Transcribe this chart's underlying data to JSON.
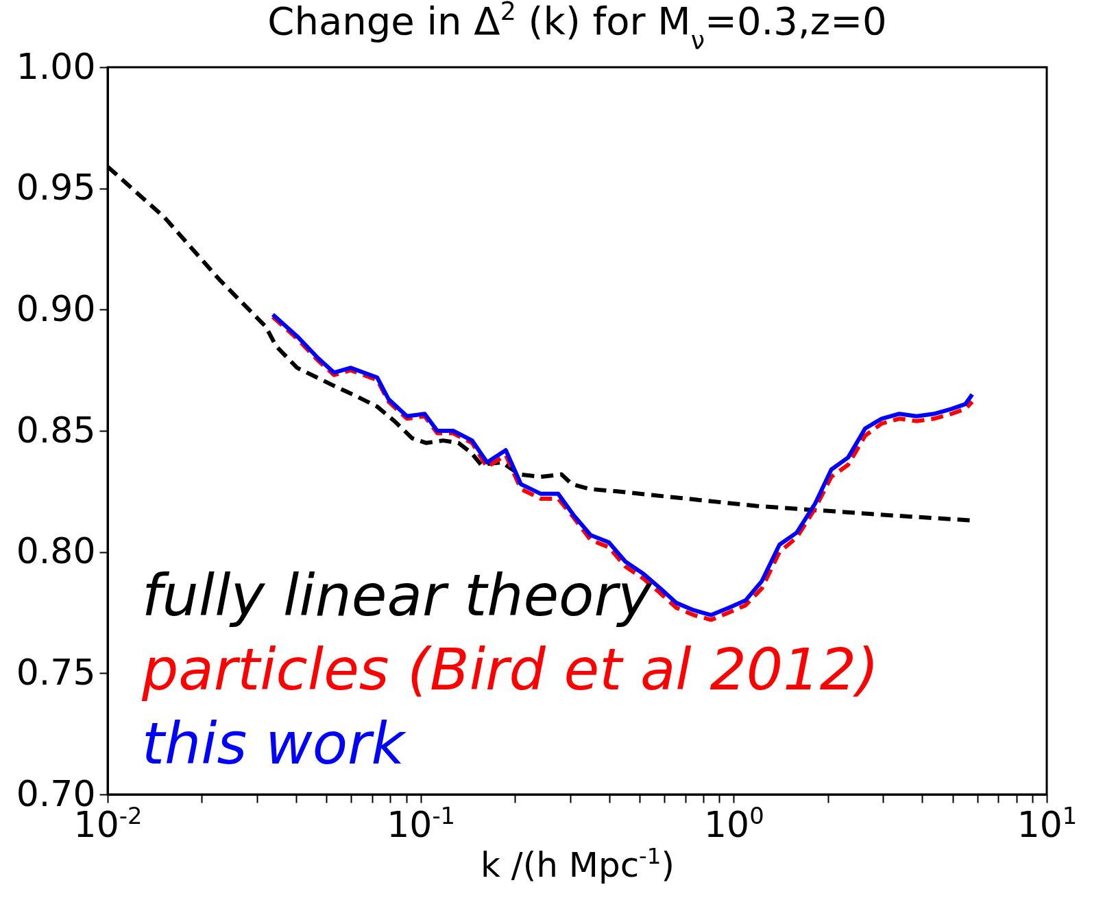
{
  "chart_data": {
    "type": "line",
    "title": "Change in Δ$^{2}$ (k) for M$_{ν}$=0.3,z=0",
    "xlabel": "k /(h Mpc$^{-1}$)",
    "log": "x",
    "xlim": [
      0.01,
      10
    ],
    "ylim": [
      0.7,
      1.0
    ],
    "grid": false,
    "legend": "bottom left",
    "xticks": [
      {
        "value": 0.01,
        "label": "10$^{-2}$"
      },
      {
        "value": 0.02,
        "label": null
      },
      {
        "value": 0.03,
        "label": null
      },
      {
        "value": 0.04,
        "label": null
      },
      {
        "value": 0.05,
        "label": null
      },
      {
        "value": 0.06,
        "label": null
      },
      {
        "value": 0.07,
        "label": null
      },
      {
        "value": 0.08,
        "label": null
      },
      {
        "value": 0.09,
        "label": null
      },
      {
        "value": 0.1,
        "label": "10$^{-1}$"
      },
      {
        "value": 0.2,
        "label": null
      },
      {
        "value": 0.3,
        "label": null
      },
      {
        "value": 0.4,
        "label": null
      },
      {
        "value": 0.5,
        "label": null
      },
      {
        "value": 0.6,
        "label": null
      },
      {
        "value": 0.7,
        "label": null
      },
      {
        "value": 0.8,
        "label": null
      },
      {
        "value": 0.9,
        "label": null
      },
      {
        "value": 1,
        "label": "10$^{0}$"
      },
      {
        "value": 2,
        "label": null
      },
      {
        "value": 3,
        "label": null
      },
      {
        "value": 4,
        "label": null
      },
      {
        "value": 5,
        "label": null
      },
      {
        "value": 6,
        "label": null
      },
      {
        "value": 7,
        "label": null
      },
      {
        "value": 8,
        "label": null
      },
      {
        "value": 9,
        "label": null
      },
      {
        "value": 10,
        "label": "10$^{1}$"
      }
    ],
    "yticks": [
      {
        "value": 0.7,
        "label": "0.70"
      },
      {
        "value": 0.75,
        "label": "0.75"
      },
      {
        "value": 0.8,
        "label": "0.80"
      },
      {
        "value": 0.85,
        "label": "0.85"
      },
      {
        "value": 0.9,
        "label": "0.90"
      },
      {
        "value": 0.95,
        "label": "0.95"
      },
      {
        "value": 1.0,
        "label": "1.00"
      }
    ],
    "series": [
      {
        "name": "fully linear theory",
        "color": "#000000",
        "line_style": "dashed",
        "x": [
          0.01,
          0.0152,
          0.0229,
          0.032,
          0.0345,
          0.0403,
          0.052,
          0.0607,
          0.0726,
          0.0825,
          0.0938,
          0.104,
          0.118,
          0.132,
          0.145,
          0.156,
          0.182,
          0.207,
          0.242,
          0.282,
          0.304,
          0.346,
          0.425,
          0.708,
          1.18,
          1.97,
          3.29,
          5.78
        ],
        "values": [
          0.959,
          0.938,
          0.912,
          0.893,
          0.885,
          0.876,
          0.869,
          0.865,
          0.86,
          0.854,
          0.847,
          0.845,
          0.846,
          0.845,
          0.841,
          0.836,
          0.837,
          0.832,
          0.831,
          0.832,
          0.828,
          0.826,
          0.825,
          0.822,
          0.819,
          0.817,
          0.815,
          0.813
        ]
      },
      {
        "name": "particles (Bird et al 2012)",
        "color": "#ff0000",
        "line_style": "dashed",
        "x": [
          0.0337,
          0.0403,
          0.047,
          0.0529,
          0.0597,
          0.0726,
          0.079,
          0.0904,
          0.103,
          0.113,
          0.127,
          0.146,
          0.163,
          0.187,
          0.209,
          0.242,
          0.275,
          0.309,
          0.349,
          0.399,
          0.451,
          0.515,
          0.583,
          0.656,
          0.745,
          0.847,
          0.964,
          1.09,
          1.23,
          1.4,
          1.59,
          1.82,
          2.05,
          2.32,
          2.63,
          2.97,
          3.38,
          3.84,
          4.36,
          4.96,
          5.49,
          5.78
        ],
        "values": [
          0.897,
          0.888,
          0.879,
          0.873,
          0.875,
          0.871,
          0.862,
          0.855,
          0.856,
          0.849,
          0.849,
          0.845,
          0.835,
          0.84,
          0.826,
          0.822,
          0.822,
          0.814,
          0.805,
          0.802,
          0.794,
          0.789,
          0.783,
          0.777,
          0.774,
          0.772,
          0.775,
          0.778,
          0.785,
          0.8,
          0.806,
          0.818,
          0.831,
          0.836,
          0.848,
          0.853,
          0.855,
          0.854,
          0.855,
          0.857,
          0.859,
          0.862
        ]
      },
      {
        "name": "this work",
        "color": "#0000ff",
        "line_style": "solid",
        "x": [
          0.0337,
          0.0403,
          0.047,
          0.0529,
          0.0597,
          0.0726,
          0.079,
          0.0904,
          0.103,
          0.113,
          0.127,
          0.146,
          0.163,
          0.187,
          0.209,
          0.242,
          0.275,
          0.309,
          0.349,
          0.399,
          0.451,
          0.515,
          0.583,
          0.656,
          0.745,
          0.847,
          0.964,
          1.09,
          1.23,
          1.4,
          1.59,
          1.82,
          2.05,
          2.32,
          2.63,
          2.97,
          3.38,
          3.84,
          4.36,
          4.96,
          5.49,
          5.78
        ],
        "values": [
          0.898,
          0.889,
          0.88,
          0.874,
          0.876,
          0.872,
          0.863,
          0.856,
          0.857,
          0.85,
          0.85,
          0.846,
          0.837,
          0.842,
          0.828,
          0.824,
          0.824,
          0.815,
          0.807,
          0.804,
          0.796,
          0.791,
          0.785,
          0.779,
          0.776,
          0.774,
          0.777,
          0.78,
          0.788,
          0.803,
          0.808,
          0.82,
          0.834,
          0.839,
          0.851,
          0.855,
          0.857,
          0.856,
          0.857,
          0.859,
          0.861,
          0.865
        ]
      }
    ]
  }
}
